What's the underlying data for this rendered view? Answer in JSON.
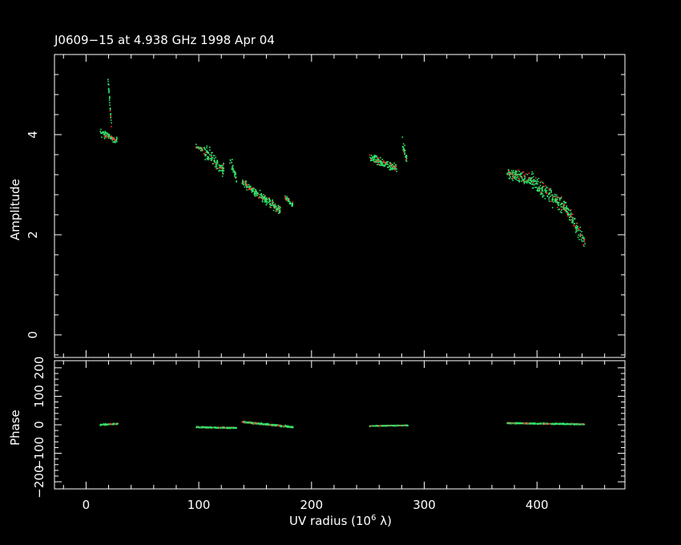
{
  "chart_data": [
    {
      "type": "scatter",
      "panel": "amplitude",
      "title": "J0609−15 at 4.938 GHz 1998 Apr 04",
      "ylabel": "Amplitude",
      "xlabel": "",
      "xlim": [
        -28,
        478
      ],
      "ylim": [
        -0.45,
        5.6
      ],
      "yticks_major": [
        0,
        2,
        4
      ],
      "ytick_labels": [
        "0",
        "2",
        "4"
      ],
      "grid": false,
      "colors": {
        "series_a": "#2ee66b",
        "series_b": "#ff2a2a",
        "axes": "#ffffff",
        "background": "#000000"
      },
      "clusters": [
        {
          "x": [
            12,
            27
          ],
          "y_trend": [
            4.05,
            3.9
          ],
          "spread": 0.1
        },
        {
          "x": [
            19,
            22
          ],
          "y_trend": [
            5.1,
            4.2
          ],
          "spread": 0.15
        },
        {
          "x": [
            97,
            103
          ],
          "y_trend": [
            3.78,
            3.7
          ],
          "spread": 0.06
        },
        {
          "x": [
            104,
            122
          ],
          "y_trend": [
            3.7,
            3.3
          ],
          "spread": 0.2
        },
        {
          "x": [
            127,
            133
          ],
          "y_trend": [
            3.55,
            3.1
          ],
          "spread": 0.15
        },
        {
          "x": [
            138,
            172
          ],
          "y_trend": [
            3.05,
            2.5
          ],
          "spread": 0.12
        },
        {
          "x": [
            176,
            183
          ],
          "y_trend": [
            2.75,
            2.6
          ],
          "spread": 0.08
        },
        {
          "x": [
            251,
            275
          ],
          "y_trend": [
            3.55,
            3.35
          ],
          "spread": 0.12
        },
        {
          "x": [
            280,
            284
          ],
          "y_trend": [
            3.85,
            3.5
          ],
          "spread": 0.15
        },
        {
          "x": [
            373,
            395
          ],
          "y_trend": [
            3.25,
            3.1
          ],
          "spread": 0.15
        },
        {
          "x": [
            395,
            425
          ],
          "y_trend": [
            3.1,
            2.55
          ],
          "spread": 0.25
        },
        {
          "x": [
            425,
            442
          ],
          "y_trend": [
            2.55,
            1.85
          ],
          "spread": 0.2
        }
      ]
    },
    {
      "type": "scatter",
      "panel": "phase",
      "ylabel": "Phase",
      "xlabel": "UV radius  (10",
      "xlabel_superscript": "6",
      "xlabel_suffix": " λ)",
      "xlim": [
        -28,
        478
      ],
      "ylim": [
        -225,
        225
      ],
      "xticks_major": [
        0,
        100,
        200,
        300,
        400
      ],
      "xtick_labels": [
        "0",
        "100",
        "200",
        "300",
        "400"
      ],
      "yticks_major": [
        -200,
        -100,
        0,
        100,
        200
      ],
      "ytick_labels": [
        "−200",
        "−100",
        "0",
        "100",
        "200"
      ],
      "clusters": [
        {
          "x": [
            12,
            28
          ],
          "y_trend": [
            2,
            6
          ],
          "spread": 3
        },
        {
          "x": [
            97,
            133
          ],
          "y_trend": [
            -6,
            -9
          ],
          "spread": 3
        },
        {
          "x": [
            138,
            183
          ],
          "y_trend": [
            12,
            -6
          ],
          "spread": 4
        },
        {
          "x": [
            251,
            285
          ],
          "y_trend": [
            -2,
            0
          ],
          "spread": 2
        },
        {
          "x": [
            373,
            442
          ],
          "y_trend": [
            8,
            4
          ],
          "spread": 3
        }
      ]
    }
  ]
}
